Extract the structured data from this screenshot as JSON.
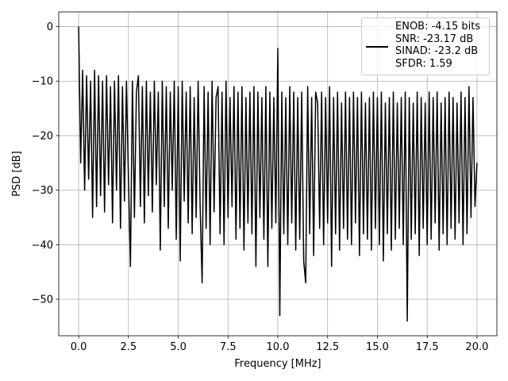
{
  "chart_data": {
    "type": "line",
    "x_label": "Frequency [MHz]",
    "y_label": "PSD [dB]",
    "xlim": [
      -1,
      21
    ],
    "ylim": [
      -56.7,
      2.7
    ],
    "xticks": [
      {
        "value": 0,
        "label": "0.0"
      },
      2.5,
      {
        "value": 5,
        "label": "5.0"
      },
      7.5,
      {
        "value": 10,
        "label": "10.0"
      },
      12.5,
      {
        "value": 15,
        "label": "15.0"
      },
      17.5,
      {
        "value": 20,
        "label": "20.0"
      }
    ],
    "yticks": [
      {
        "value": -50,
        "label": "−50"
      },
      {
        "value": -40,
        "label": "−40"
      },
      {
        "value": -30,
        "label": "−30"
      },
      {
        "value": -20,
        "label": "−20"
      },
      {
        "value": -10,
        "label": "−10"
      },
      0
    ],
    "grid": true,
    "legend": "upper right",
    "x": [
      0,
      0.1,
      0.2,
      0.3,
      0.4,
      0.5,
      0.6,
      0.7,
      0.8,
      0.9,
      1,
      1.1,
      1.2,
      1.3,
      1.4,
      1.5,
      1.6,
      1.7,
      1.8,
      1.9,
      2,
      2.1,
      2.2,
      2.3,
      2.4,
      2.5,
      2.6,
      2.7,
      2.8,
      2.9,
      3,
      3.1,
      3.2,
      3.3,
      3.4,
      3.5,
      3.6,
      3.7,
      3.8,
      3.9,
      4,
      4.1,
      4.2,
      4.3,
      4.4,
      4.5,
      4.6,
      4.7,
      4.8,
      4.9,
      5,
      5.1,
      5.2,
      5.3,
      5.4,
      5.5,
      5.6,
      5.7,
      5.8,
      5.9,
      6,
      6.1,
      6.2,
      6.3,
      6.4,
      6.5,
      6.6,
      6.7,
      6.8,
      6.9,
      7,
      7.1,
      7.2,
      7.3,
      7.4,
      7.5,
      7.6,
      7.7,
      7.8,
      7.9,
      8,
      8.1,
      8.2,
      8.3,
      8.4,
      8.5,
      8.6,
      8.7,
      8.8,
      8.9,
      9,
      9.1,
      9.2,
      9.3,
      9.4,
      9.5,
      9.6,
      9.7,
      9.8,
      9.9,
      10,
      10.1,
      10.2,
      10.3,
      10.4,
      10.5,
      10.6,
      10.7,
      10.8,
      10.9,
      11,
      11.1,
      11.2,
      11.3,
      11.4,
      11.5,
      11.6,
      11.7,
      11.8,
      11.9,
      12,
      12.1,
      12.2,
      12.3,
      12.4,
      12.5,
      12.6,
      12.7,
      12.8,
      12.9,
      13,
      13.1,
      13.2,
      13.3,
      13.4,
      13.5,
      13.6,
      13.7,
      13.8,
      13.9,
      14,
      14.1,
      14.2,
      14.3,
      14.4,
      14.5,
      14.6,
      14.7,
      14.8,
      14.9,
      15,
      15.1,
      15.2,
      15.3,
      15.4,
      15.5,
      15.6,
      15.7,
      15.8,
      15.9,
      16,
      16.1,
      16.2,
      16.3,
      16.4,
      16.5,
      16.6,
      16.7,
      16.8,
      16.9,
      17,
      17.1,
      17.2,
      17.3,
      17.4,
      17.5,
      17.6,
      17.7,
      17.8,
      17.9,
      18,
      18.1,
      18.2,
      18.3,
      18.4,
      18.5,
      18.6,
      18.7,
      18.8,
      18.9,
      19,
      19.1,
      19.2,
      19.3,
      19.4,
      19.5,
      19.6,
      19.7,
      19.8,
      19.9,
      20
    ],
    "series": [
      {
        "name": "ENOB: -4.15 bits\nSNR: -23.17 dB\nSINAD: -23.2 dB\nSFDR: 1.59",
        "color": "#000000",
        "values": [
          0,
          -25,
          -8,
          -30,
          -9,
          -28,
          -10,
          -35,
          -8,
          -33,
          -9,
          -31,
          -10,
          -34,
          -9,
          -29,
          -11,
          -36,
          -10,
          -30,
          -9,
          -37,
          -11,
          -32,
          -10,
          -28,
          -44,
          -10,
          -35,
          -12,
          -9,
          -33,
          -11,
          -36,
          -10,
          -31,
          -12,
          -34,
          -10,
          -29,
          -12,
          -41,
          -10,
          -33,
          -11,
          -37,
          -12,
          -30,
          -10,
          -39,
          -11,
          -43,
          -10,
          -32,
          -12,
          -36,
          -11,
          -38,
          -13,
          -35,
          -10,
          -33,
          -47,
          -11,
          -37,
          -12,
          -40,
          -10,
          -34,
          -13,
          -11,
          -38,
          -12,
          -40,
          -10,
          -35,
          -13,
          -33,
          -11,
          -39,
          -12,
          -37,
          -11,
          -41,
          -13,
          -36,
          -12,
          -38,
          -11,
          -44,
          -12,
          -35,
          -13,
          -39,
          -11,
          -44,
          -12,
          -37,
          -13,
          -36,
          -4,
          -53,
          -12,
          -38,
          -13,
          -40,
          -11,
          -36,
          -12,
          -41,
          -13,
          -39,
          -12,
          -43,
          -47,
          -11,
          -38,
          -13,
          -42,
          -12,
          -14,
          -37,
          -12,
          -40,
          -13,
          -36,
          -11,
          -44,
          -13,
          -38,
          -12,
          -41,
          -14,
          -37,
          -12,
          -39,
          -13,
          -40,
          -12,
          -36,
          -13,
          -42,
          -12,
          -38,
          -14,
          -39,
          -13,
          -41,
          -12,
          -37,
          -13,
          -40,
          -12,
          -43,
          -14,
          -38,
          -13,
          -41,
          -12,
          -39,
          -14,
          -37,
          -13,
          -40,
          -12,
          -54,
          -13,
          -39,
          -14,
          -38,
          -12,
          -42,
          -13,
          -37,
          -14,
          -40,
          -12,
          -39,
          -13,
          -36,
          -12,
          -41,
          -14,
          -38,
          -13,
          -40,
          -12,
          -37,
          -13,
          -39,
          -14,
          -36,
          -12,
          -40,
          -13,
          -38,
          -11,
          -35,
          -13,
          -33,
          -25
        ]
      }
    ]
  }
}
